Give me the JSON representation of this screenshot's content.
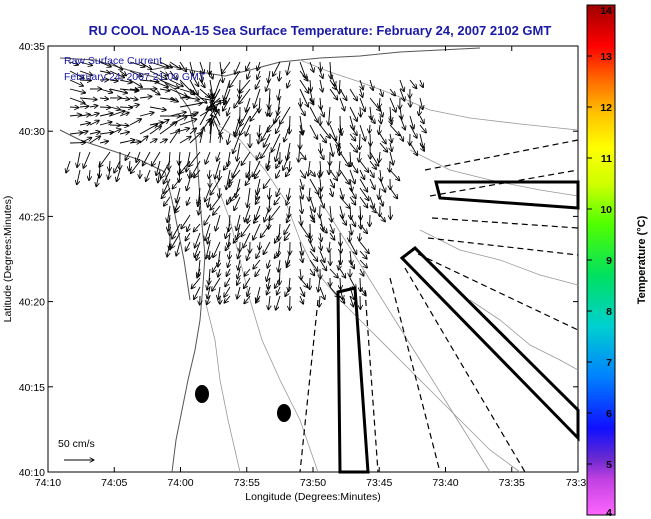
{
  "chart_data": {
    "type": "map",
    "title": "RU COOL  NOAA-15  Sea Surface Temperature:  February 24, 2007 2102 GMT",
    "overlay_lines": [
      "Raw Surface Current",
      "February 24, 2007 21:00 GMT"
    ],
    "xlabel": "Longitude (Degrees:Minutes)",
    "ylabel": "Latitude (Degrees:Minutes)",
    "x_ticks": [
      "74:10",
      "74:05",
      "74:00",
      "73:55",
      "73:50",
      "73:45",
      "73:40",
      "73:35",
      "73:3"
    ],
    "y_ticks": [
      "40:35",
      "40:30",
      "40:25",
      "40:20",
      "40:15",
      "40:10"
    ],
    "xlim_minutes_west": [
      10,
      30
    ],
    "ylim_minutes_north": [
      10,
      35
    ],
    "scale_label": "50 cm/s",
    "colorbar": {
      "label": "Temperature (°C)",
      "ticks": [
        "14",
        "13",
        "12",
        "11",
        "10",
        "9",
        "8",
        "7",
        "6",
        "5",
        "4"
      ],
      "range": [
        4,
        14
      ]
    }
  }
}
